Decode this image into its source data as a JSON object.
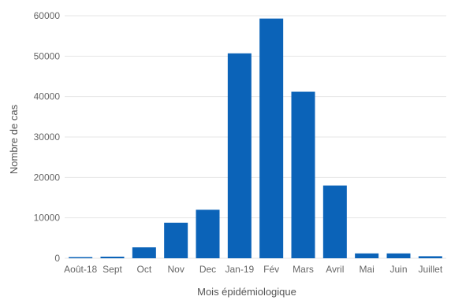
{
  "chart_data": {
    "type": "bar",
    "categories": [
      "Août-18",
      "Sept",
      "Oct",
      "Nov",
      "Dec",
      "Jan-19",
      "Fév",
      "Mars",
      "Avril",
      "Mai",
      "Juin",
      "Juillet"
    ],
    "values": [
      60,
      400,
      2700,
      8800,
      12000,
      50700,
      59300,
      41200,
      18000,
      1200,
      1200,
      500
    ],
    "xlabel": "Mois épidémiologique",
    "ylabel": "Nombre de cas",
    "ylim": [
      0,
      60000
    ],
    "yticks": [
      "0",
      "10000",
      "20000",
      "30000",
      "40000",
      "50000",
      "60000"
    ],
    "bar_color": "#0b63b8",
    "grid": true,
    "legend": "none"
  }
}
